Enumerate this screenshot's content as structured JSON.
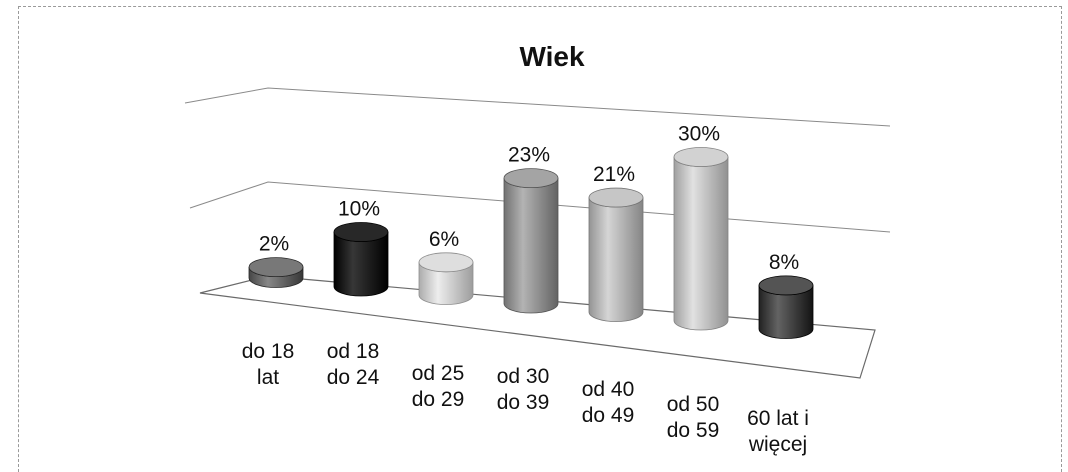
{
  "chart_data": {
    "type": "bar",
    "subtype": "3d-cylinder",
    "title": "Wiek",
    "categories": [
      [
        "do 18",
        "lat"
      ],
      [
        "od 18",
        "do 24"
      ],
      [
        "od 25",
        "do 29"
      ],
      [
        "od 30",
        "do 39"
      ],
      [
        "od 40",
        "do 49"
      ],
      [
        "od 50",
        "do 59"
      ],
      [
        "60 lat i",
        "więcej"
      ]
    ],
    "values": [
      2,
      10,
      6,
      23,
      21,
      30,
      8
    ],
    "value_labels": [
      "2%",
      "10%",
      "6%",
      "23%",
      "21%",
      "30%",
      "8%"
    ],
    "ylim": [
      0,
      40
    ],
    "grid": true,
    "legend": "none",
    "colors": [
      "#6e6e6e",
      "#1e1e1e",
      "#d4d4d4",
      "#9a9a9a",
      "#bcbcbc",
      "#c8c8c8",
      "#4a4a4a"
    ]
  }
}
